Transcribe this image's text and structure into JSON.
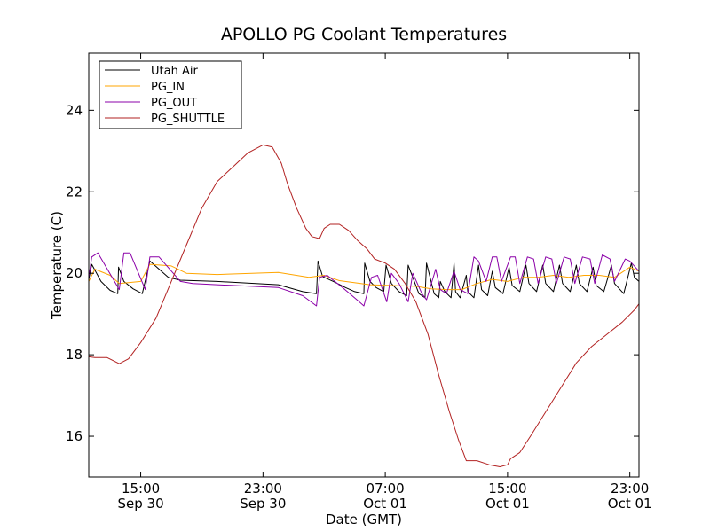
{
  "chart_data": {
    "type": "line",
    "title": "APOLLO PG Coolant Temperatures",
    "xlabel": "Date (GMT)",
    "ylabel": "Temperature (C)",
    "x_unit": "hours since Sep 30 00:00 GMT",
    "xlim": [
      11.6,
      47.6
    ],
    "ylim": [
      15.0,
      25.4
    ],
    "yticks": [
      16,
      18,
      20,
      22,
      24
    ],
    "xticks": [
      {
        "x": 15,
        "line1": "15:00",
        "line2": "Sep 30"
      },
      {
        "x": 23,
        "line1": "23:00",
        "line2": "Sep 30"
      },
      {
        "x": 31,
        "line1": "07:00",
        "line2": "Oct 01"
      },
      {
        "x": 39,
        "line1": "15:00",
        "line2": "Oct 01"
      },
      {
        "x": 47,
        "line1": "23:00",
        "line2": "Oct 01"
      }
    ],
    "legend_position": "top-left",
    "series": [
      {
        "name": "Utah Air",
        "color": "#000000",
        "x": [
          11.6,
          11.8,
          12.4,
          13.0,
          13.5,
          13.55,
          13.9,
          14.5,
          15.1,
          15.6,
          16.8,
          17.6,
          20,
          24,
          25.6,
          26.5,
          26.6,
          26.9,
          27.6,
          28.4,
          29.0,
          29.6,
          29.65,
          30,
          30.4,
          30.9,
          31.05,
          31.4,
          31.9,
          32.4,
          32.5,
          33.2,
          33.6,
          33.7,
          34.2,
          34.5,
          34.6,
          34.9,
          35.3,
          35.5,
          35.6,
          35.9,
          36.3,
          36.4,
          36.8,
          37.1,
          37.3,
          37.7,
          38.0,
          38.2,
          38.7,
          39.1,
          39.3,
          39.8,
          40.2,
          40.4,
          40.9,
          41.3,
          41.5,
          42.0,
          42.4,
          42.6,
          43.1,
          43.5,
          43.7,
          44.2,
          44.6,
          44.8,
          45.3,
          45.8,
          46.0,
          46.6,
          47.1,
          47.3,
          47.6
        ],
        "y": [
          19.85,
          20.22,
          19.8,
          19.58,
          19.5,
          20.15,
          19.8,
          19.62,
          19.5,
          20.3,
          19.9,
          19.83,
          19.8,
          19.72,
          19.55,
          19.5,
          20.3,
          19.92,
          19.8,
          19.65,
          19.55,
          19.5,
          20.25,
          19.8,
          19.65,
          19.55,
          20.2,
          19.75,
          19.55,
          19.45,
          20.2,
          19.5,
          19.4,
          20.25,
          19.5,
          19.4,
          19.8,
          19.55,
          19.4,
          20.25,
          19.55,
          19.4,
          19.95,
          19.55,
          19.4,
          20.2,
          19.6,
          19.45,
          20.05,
          19.65,
          19.5,
          20.15,
          19.7,
          19.55,
          20.2,
          19.75,
          19.55,
          20.2,
          19.75,
          19.55,
          20.2,
          19.75,
          19.55,
          20.2,
          19.75,
          19.55,
          20.15,
          19.7,
          19.55,
          20.2,
          19.75,
          19.5,
          20.25,
          19.9,
          19.8
        ]
      },
      {
        "name": "PG_IN",
        "color": "#ffa500",
        "x": [
          11.6,
          12.0,
          13.0,
          13.6,
          15.0,
          15.6,
          17,
          18,
          20,
          24,
          26,
          27,
          28,
          30,
          31.5,
          33,
          34,
          35,
          36,
          37,
          38,
          39,
          40,
          41,
          42,
          43,
          44,
          45,
          46,
          47,
          47.6
        ],
        "y": [
          19.8,
          20.1,
          19.95,
          19.75,
          19.8,
          20.22,
          20.18,
          20.0,
          19.97,
          20.02,
          19.9,
          19.95,
          19.82,
          19.72,
          19.7,
          19.68,
          19.62,
          19.6,
          19.6,
          19.75,
          19.85,
          19.8,
          19.9,
          19.9,
          19.95,
          19.9,
          19.95,
          19.95,
          19.9,
          20.15,
          20.05
        ]
      },
      {
        "name": "PG_OUT",
        "color": "#8b00a8",
        "x": [
          11.6,
          11.8,
          12.2,
          13.6,
          13.9,
          14.3,
          15.3,
          15.6,
          16.2,
          17.6,
          18.4,
          20,
          24,
          25.6,
          26.5,
          26.7,
          27.2,
          28.2,
          29.3,
          29.6,
          30.1,
          30.5,
          31.1,
          31.4,
          31.9,
          32.5,
          32.8,
          33.4,
          33.7,
          34.3,
          34.6,
          35.0,
          35.5,
          35.9,
          36.4,
          36.8,
          37.1,
          37.6,
          38.0,
          38.3,
          38.6,
          39.2,
          39.5,
          39.8,
          40.3,
          40.7,
          41.0,
          41.5,
          41.9,
          42.2,
          42.7,
          43.1,
          43.4,
          43.9,
          44.4,
          44.7,
          45.2,
          45.7,
          46.0,
          46.7,
          47.0,
          47.6
        ],
        "y": [
          19.9,
          20.4,
          20.5,
          19.6,
          20.5,
          20.5,
          19.6,
          20.4,
          20.4,
          19.8,
          19.75,
          19.72,
          19.65,
          19.45,
          19.2,
          19.9,
          19.95,
          19.65,
          19.3,
          19.2,
          19.9,
          19.95,
          19.3,
          20.0,
          19.75,
          19.3,
          20.0,
          19.5,
          19.35,
          20.1,
          19.6,
          19.5,
          20.05,
          19.6,
          19.5,
          20.4,
          20.3,
          19.8,
          20.4,
          20.4,
          19.8,
          20.4,
          20.4,
          19.75,
          20.4,
          20.35,
          19.75,
          20.4,
          20.35,
          19.75,
          20.4,
          20.35,
          19.75,
          20.4,
          20.35,
          19.75,
          20.45,
          20.35,
          19.8,
          20.35,
          20.3,
          20.05
        ]
      },
      {
        "name": "PG_SHUTTLE",
        "color": "#b22222",
        "x": [
          11.6,
          12.0,
          12.8,
          13.6,
          14.2,
          15.0,
          16,
          17,
          18,
          19,
          20,
          21,
          22,
          23,
          23.6,
          24.2,
          24.6,
          25.2,
          25.8,
          26.2,
          26.7,
          27.0,
          27.4,
          28.0,
          28.6,
          29.2,
          29.8,
          30.3,
          31,
          31.6,
          32.3,
          33.0,
          33.8,
          34.5,
          35.2,
          35.8,
          36.3,
          37.0,
          37.8,
          38.5,
          39.0,
          39.2,
          39.8,
          40.5,
          41.5,
          42.5,
          43.5,
          44.5,
          45.5,
          46.5,
          47.3,
          47.6
        ],
        "y": [
          17.95,
          17.93,
          17.93,
          17.78,
          17.9,
          18.3,
          18.9,
          19.8,
          20.7,
          21.6,
          22.25,
          22.6,
          22.95,
          23.15,
          23.1,
          22.7,
          22.2,
          21.6,
          21.1,
          20.9,
          20.85,
          21.1,
          21.2,
          21.2,
          21.05,
          20.8,
          20.6,
          20.35,
          20.25,
          20.1,
          19.75,
          19.3,
          18.5,
          17.5,
          16.6,
          15.9,
          15.4,
          15.4,
          15.3,
          15.25,
          15.3,
          15.45,
          15.6,
          16.0,
          16.6,
          17.2,
          17.8,
          18.2,
          18.5,
          18.8,
          19.1,
          19.25
        ]
      }
    ]
  }
}
